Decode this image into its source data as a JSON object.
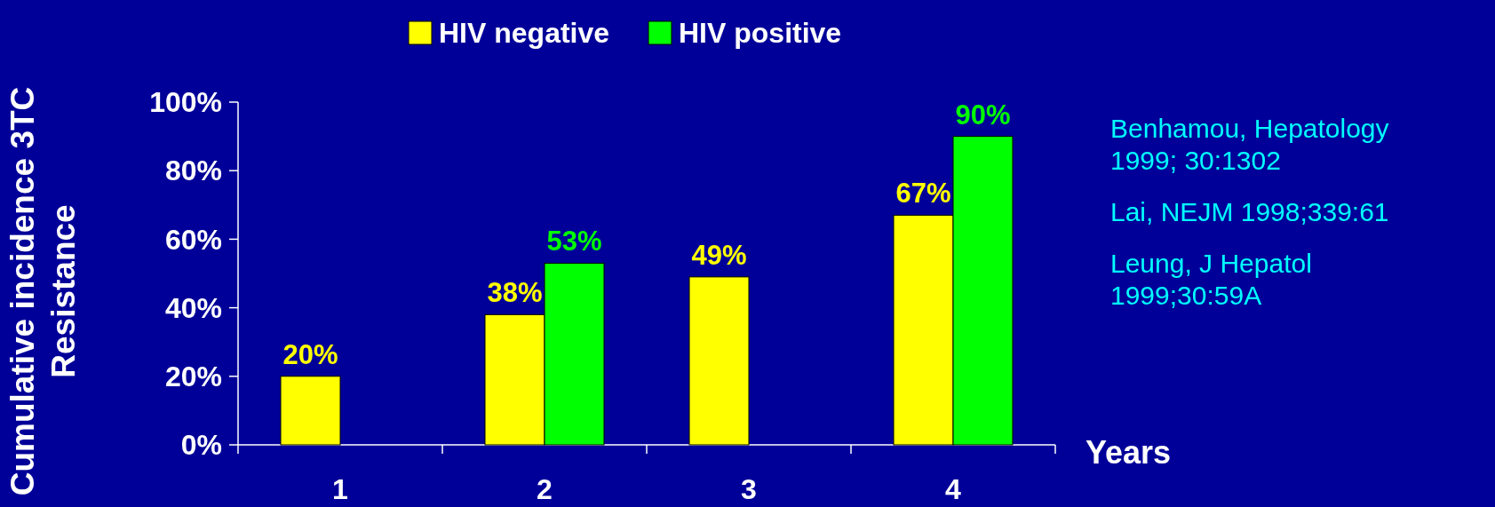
{
  "chart_data": {
    "type": "bar",
    "ylabel": "Cumulative incidence 3TC Resistance",
    "xlabel": "Years",
    "categories": [
      "1",
      "2",
      "3",
      "4"
    ],
    "series": [
      {
        "name": "HIV negative",
        "color": "#ffff00",
        "values": [
          20,
          38,
          49,
          67
        ],
        "value_labels": [
          "20%",
          "38%",
          "49%",
          "67%"
        ]
      },
      {
        "name": "HIV positive",
        "color": "#00ff00",
        "values": [
          null,
          53,
          null,
          90
        ],
        "value_labels": [
          null,
          "53%",
          null,
          "90%"
        ]
      }
    ],
    "ylim": [
      0,
      100
    ],
    "yticks": [
      {
        "value": 0,
        "label": "0%"
      },
      {
        "value": 20,
        "label": "20%"
      },
      {
        "value": 40,
        "label": "40%"
      },
      {
        "value": 60,
        "label": "60%"
      },
      {
        "value": 80,
        "label": "80%"
      },
      {
        "value": 100,
        "label": "100%"
      }
    ],
    "legend": "top",
    "annotations": [
      "Benhamou, Hepatology 1999; 30:1302",
      "Lai, NEJM 1998;339:61",
      "Leung, J Hepatol 1999;30:59A"
    ]
  }
}
